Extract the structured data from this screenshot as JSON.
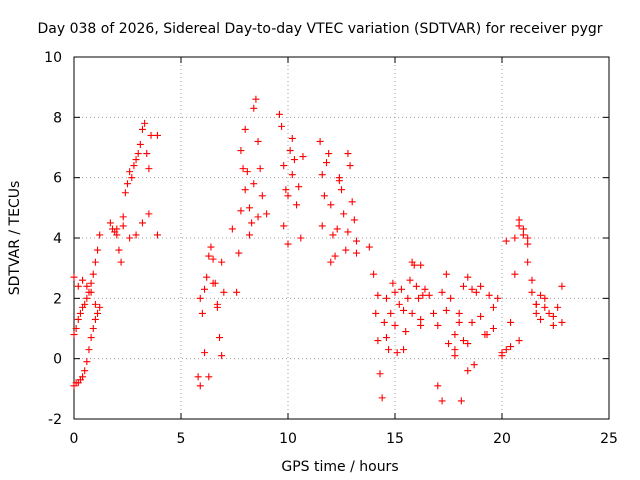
{
  "chart_data": {
    "type": "scatter",
    "title": "Day 038 of 2026, Sidereal Day-to-day VTEC variation (SDTVAR) for receiver pygr",
    "xlabel": "GPS time / hours",
    "ylabel": "SDTVAR / TECUs",
    "xlim": [
      0,
      25
    ],
    "ylim": [
      -2,
      10
    ],
    "xticks": [
      0,
      5,
      10,
      15,
      20,
      25
    ],
    "yticks": [
      -2,
      0,
      2,
      4,
      6,
      8,
      10
    ],
    "xtick_labels": [
      "0",
      "5",
      "10",
      "15",
      "20",
      "25"
    ],
    "ytick_labels": [
      "-2",
      "0",
      "2",
      "4",
      "6",
      "8",
      "10"
    ],
    "grid": true,
    "marker": "+",
    "series": [
      {
        "name": "SDTVAR",
        "color": "#ff0000",
        "x": [
          0.0,
          0.1,
          0.2,
          0.3,
          0.4,
          0.5,
          0.6,
          0.7,
          0.8,
          0.9,
          1.0,
          1.1,
          1.2,
          0.0,
          0.1,
          0.2,
          0.3,
          0.4,
          0.5,
          0.6,
          0.7,
          0.8,
          0.9,
          1.0,
          1.1,
          1.2,
          0.0,
          0.2,
          0.4,
          0.6,
          0.8,
          1.0,
          1.7,
          1.8,
          1.9,
          2.0,
          2.1,
          2.2,
          2.3,
          2.4,
          2.5,
          2.6,
          2.7,
          2.8,
          2.9,
          3.0,
          3.1,
          3.2,
          3.3,
          3.4,
          3.5,
          3.6,
          2.0,
          2.3,
          2.6,
          2.9,
          3.2,
          3.5,
          3.9,
          3.9,
          5.8,
          5.9,
          6.0,
          6.1,
          6.2,
          6.3,
          6.4,
          6.5,
          6.6,
          6.7,
          6.8,
          6.9,
          7.0,
          5.9,
          6.1,
          6.3,
          6.5,
          6.7,
          6.9,
          7.4,
          7.6,
          7.7,
          7.8,
          7.9,
          8.0,
          8.1,
          8.2,
          8.3,
          8.4,
          8.5,
          8.6,
          8.7,
          8.8,
          9.0,
          7.8,
          8.0,
          8.2,
          8.4,
          8.6,
          9.6,
          9.7,
          9.8,
          9.9,
          10.0,
          10.1,
          10.2,
          10.3,
          10.5,
          10.7,
          9.8,
          10.0,
          10.2,
          10.4,
          10.6,
          11.5,
          11.6,
          11.7,
          11.8,
          11.9,
          12.0,
          12.1,
          12.2,
          12.3,
          12.4,
          12.5,
          12.6,
          12.7,
          12.8,
          12.9,
          13.0,
          13.1,
          13.2,
          11.6,
          12.0,
          12.4,
          12.8,
          13.2,
          13.8,
          14.0,
          14.1,
          14.2,
          14.3,
          14.4,
          14.5,
          14.6,
          14.7,
          14.8,
          14.9,
          15.0,
          15.1,
          15.2,
          15.3,
          15.4,
          15.5,
          15.6,
          15.7,
          15.8,
          15.9,
          16.0,
          16.1,
          16.2,
          16.3,
          14.2,
          14.6,
          15.0,
          15.4,
          15.8,
          16.2,
          16.2,
          16.4,
          16.6,
          16.8,
          17.0,
          17.2,
          17.4,
          17.6,
          17.8,
          18.0,
          18.2,
          18.4,
          18.6,
          18.8,
          19.0,
          19.2,
          19.4,
          19.6,
          17.0,
          17.2,
          17.4,
          17.8,
          18.0,
          18.2,
          18.4,
          18.6,
          17.5,
          17.8,
          18.1,
          18.4,
          18.7,
          19.0,
          19.3,
          19.6,
          19.8,
          20.0,
          20.2,
          20.4,
          20.6,
          20.8,
          21.0,
          21.2,
          21.4,
          21.6,
          21.8,
          22.0,
          22.2,
          22.4,
          22.6,
          22.8,
          20.0,
          20.4,
          20.8,
          21.2,
          21.6,
          22.0,
          22.4,
          22.8,
          20.8,
          21.0,
          21.2,
          21.4,
          21.6,
          21.8,
          20.2,
          20.6
        ],
        "y": [
          -0.9,
          -0.8,
          -0.8,
          -0.7,
          -0.6,
          -0.4,
          -0.1,
          0.3,
          0.7,
          1.0,
          1.3,
          1.5,
          1.7,
          0.8,
          1.0,
          1.3,
          1.5,
          1.7,
          1.8,
          2.0,
          2.2,
          2.5,
          2.8,
          3.2,
          3.6,
          4.1,
          2.7,
          2.4,
          2.6,
          2.4,
          2.2,
          1.8,
          4.5,
          4.3,
          4.2,
          4.1,
          3.6,
          3.2,
          4.7,
          5.5,
          5.8,
          6.2,
          6.0,
          6.4,
          6.6,
          6.8,
          7.1,
          7.6,
          7.8,
          6.8,
          6.3,
          7.4,
          4.3,
          4.4,
          4.0,
          4.1,
          4.5,
          4.8,
          4.1,
          7.4,
          -0.6,
          -0.9,
          1.5,
          2.3,
          2.7,
          3.4,
          3.7,
          3.3,
          2.5,
          1.7,
          0.7,
          0.1,
          2.2,
          2.0,
          0.2,
          -0.6,
          2.5,
          1.8,
          3.2,
          4.3,
          2.2,
          3.5,
          4.9,
          6.3,
          7.6,
          6.2,
          5.0,
          4.5,
          8.3,
          8.6,
          7.2,
          6.3,
          5.4,
          4.8,
          6.9,
          5.6,
          4.1,
          5.8,
          4.7,
          8.1,
          7.7,
          6.4,
          5.6,
          5.4,
          6.9,
          7.3,
          6.6,
          5.7,
          6.7,
          4.4,
          3.8,
          6.1,
          5.1,
          4.0,
          7.2,
          6.1,
          5.4,
          6.5,
          6.8,
          5.1,
          4.1,
          3.4,
          4.3,
          6.0,
          5.6,
          4.8,
          3.6,
          6.8,
          6.4,
          5.2,
          4.6,
          3.9,
          4.4,
          3.2,
          5.9,
          4.2,
          3.5,
          3.7,
          2.8,
          1.5,
          0.6,
          -0.5,
          -1.3,
          1.2,
          2.0,
          0.3,
          1.5,
          2.5,
          1.1,
          0.2,
          1.8,
          2.3,
          1.6,
          0.9,
          2.0,
          2.6,
          3.2,
          3.1,
          2.4,
          2.0,
          1.3,
          2.1,
          2.1,
          0.7,
          2.2,
          0.3,
          1.5,
          1.1,
          3.1,
          2.3,
          2.1,
          1.5,
          1.1,
          2.2,
          2.8,
          2.0,
          0.8,
          1.5,
          2.4,
          0.5,
          1.2,
          2.2,
          1.4,
          0.8,
          2.1,
          1.0,
          -0.9,
          -1.4,
          1.6,
          0.3,
          1.2,
          0.6,
          2.7,
          2.3,
          0.5,
          0.1,
          -1.4,
          -0.4,
          -0.2,
          2.4,
          0.8,
          1.7,
          2.0,
          0.1,
          0.3,
          1.2,
          2.8,
          4.6,
          4.1,
          3.8,
          2.2,
          1.8,
          1.3,
          2.0,
          1.5,
          1.1,
          1.7,
          2.4,
          0.2,
          0.4,
          0.6,
          3.2,
          1.8,
          1.7,
          1.4,
          1.2,
          4.4,
          4.3,
          4.0,
          2.6,
          1.5,
          2.1,
          3.9,
          4.0
        ]
      }
    ]
  }
}
